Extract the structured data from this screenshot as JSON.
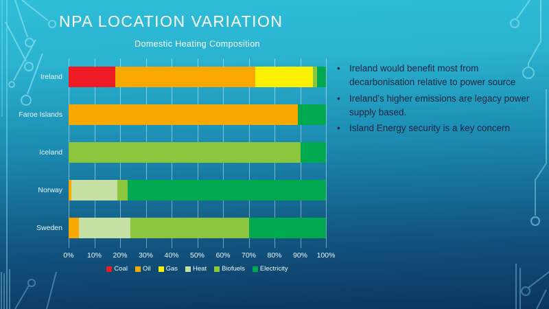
{
  "slide": {
    "title": "NPA LOCATION VARIATION",
    "bullets": [
      "Ireland would benefit most from decarbonisation relative to power source",
      "Ireland’s higher emissions are legacy power supply based.",
      "Island Energy security is a key concern"
    ],
    "bullet_text_color": "#16243e",
    "background_top_color": "#2fbed9",
    "background_bottom_color": "#0c3560",
    "decoration": "circuit-board-traces"
  },
  "chart_data": {
    "type": "bar",
    "orientation": "horizontal",
    "stacked": true,
    "title": "Domestic Heating Composition",
    "categories": [
      "Ireland",
      "Faroe Islands",
      "Iceland",
      "Norway",
      "Sweden"
    ],
    "series": [
      {
        "name": "Coal",
        "color": "#ee1b24",
        "values": [
          18,
          0,
          0,
          0,
          0
        ]
      },
      {
        "name": "Oil",
        "color": "#f9a800",
        "values": [
          54.5,
          89,
          0,
          1,
          4
        ]
      },
      {
        "name": "Gas",
        "color": "#fcf000",
        "values": [
          22.5,
          0,
          0,
          0,
          0
        ]
      },
      {
        "name": "Heat",
        "color": "#c6dfa2",
        "values": [
          0,
          0,
          0,
          18,
          20
        ]
      },
      {
        "name": "Biofuels",
        "color": "#8cc63f",
        "values": [
          1.5,
          0,
          90,
          4,
          46
        ]
      },
      {
        "name": "Electricity",
        "color": "#00a94f",
        "values": [
          3.5,
          11,
          10,
          77,
          30
        ]
      }
    ],
    "x_ticks": [
      "0%",
      "10%",
      "20%",
      "30%",
      "40%",
      "50%",
      "60%",
      "70%",
      "80%",
      "90%",
      "100%"
    ],
    "xlim": [
      0,
      100
    ],
    "grid": true,
    "legend_position": "bottom",
    "xlabel": "",
    "ylabel": ""
  }
}
